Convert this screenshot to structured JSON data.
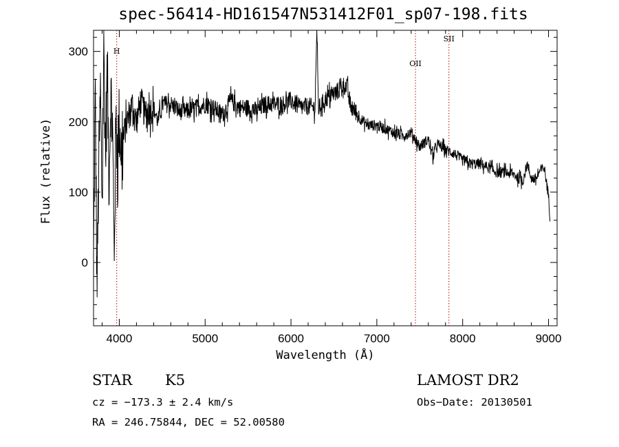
{
  "chart_data": {
    "type": "line",
    "title": "spec-56414-HD161547N531412F01_sp07-198.fits",
    "xlabel": "Wavelength (Å)",
    "ylabel": "Flux (relative)",
    "xlim": [
      3700,
      9100
    ],
    "ylim": [
      -90,
      330
    ],
    "xticks": [
      "4000",
      "5000",
      "6000",
      "7000",
      "8000",
      "9000"
    ],
    "yticks": [
      "0",
      "100",
      "200",
      "300"
    ],
    "grid": false,
    "series": [
      {
        "x": [
          3700,
          3720,
          3740,
          3760,
          3780,
          3800,
          3820,
          3840,
          3860,
          3880,
          3900,
          3920,
          3940,
          3960,
          3980,
          4000,
          4030,
          4060,
          4100,
          4150,
          4200,
          4250,
          4300,
          4350,
          4400,
          4450,
          4500,
          4600,
          4700,
          4800,
          4900,
          5000,
          5100,
          5200,
          5300,
          5400,
          5500,
          5600,
          5700,
          5800,
          5900,
          6000,
          6100,
          6200,
          6280,
          6300,
          6320,
          6400,
          6500,
          6560,
          6600,
          6650,
          6700,
          6750,
          6800,
          6900,
          7000,
          7100,
          7200,
          7300,
          7400,
          7500,
          7600,
          7650,
          7700,
          7750,
          7800,
          7900,
          8000,
          8100,
          8200,
          8300,
          8400,
          8500,
          8600,
          8700,
          8750,
          8800,
          8850,
          8900,
          8950,
          9000,
          9020
        ],
        "values": [
          0,
          240,
          -40,
          130,
          230,
          90,
          310,
          150,
          275,
          120,
          240,
          200,
          10,
          190,
          165,
          200,
          150,
          185,
          205,
          225,
          200,
          230,
          210,
          215,
          220,
          200,
          225,
          225,
          215,
          215,
          220,
          225,
          220,
          210,
          230,
          220,
          220,
          215,
          225,
          225,
          225,
          230,
          220,
          222,
          220,
          330,
          218,
          232,
          240,
          245,
          252,
          250,
          220,
          215,
          205,
          195,
          195,
          190,
          185,
          180,
          185,
          165,
          175,
          150,
          168,
          165,
          160,
          155,
          145,
          140,
          140,
          135,
          128,
          128,
          125,
          115,
          140,
          120,
          118,
          130,
          135,
          95,
          60
        ]
      }
    ],
    "annotations": [
      {
        "label": "H",
        "x": 3970
      },
      {
        "label": "OII",
        "x": 7450
      },
      {
        "label": "SII",
        "x": 7840
      }
    ]
  },
  "info": {
    "object_type": "STAR",
    "subclass": "K5",
    "survey": "LAMOST DR2",
    "cz": "cz = −173.3 ± 2.4 km/s",
    "obs_date": "Obs−Date: 20130501",
    "coords": "RA = 246.75844, DEC =  52.00580"
  }
}
